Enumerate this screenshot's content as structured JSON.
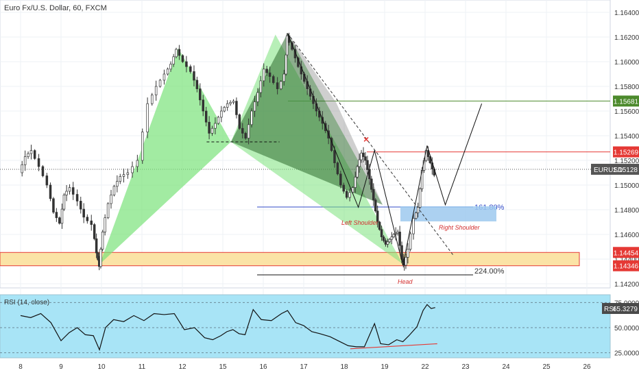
{
  "chart_title": "Euro Fx/U.S. Dollar, 60, FXCM",
  "rsi_title": "RSI (14, close)",
  "colors": {
    "candle": "#333333",
    "bullish_pattern": "#7be27b",
    "bearish_pattern": "#2f6b2f",
    "zone_fill": "#fbe3a6",
    "zone_border": "#e53935",
    "resistance": "#e53935",
    "target_line": "#4c8a2c",
    "fib_line": "#2f49c7",
    "shoulder_box": "#9ec9ef",
    "rsi_bg": "#a8e4f6",
    "rsi_line": "#111111",
    "rsi_trend": "#e53935",
    "label_red": "#d32f2f"
  },
  "chart_data": {
    "type": "candlestick",
    "symbol": "EURUSD",
    "timeframe": "60",
    "xlabels": [
      "8",
      "9",
      "10",
      "11",
      "12",
      "15",
      "16",
      "17",
      "18",
      "19",
      "22",
      "23",
      "24",
      "25",
      "26"
    ],
    "ylim": [
      1.1405,
      1.1655
    ],
    "ytick_labels": [
      "1.16400",
      "1.16200",
      "1.16000",
      "1.15800",
      "1.15600",
      "1.15400",
      "1.15200",
      "1.15000",
      "1.14800",
      "1.14600",
      "1.14400",
      "1.14200"
    ],
    "price_series": [
      [
        0,
        1.151
      ],
      [
        0.15,
        1.1523
      ],
      [
        0.3,
        1.1528
      ],
      [
        0.5,
        1.1515
      ],
      [
        0.7,
        1.15
      ],
      [
        0.85,
        1.1478
      ],
      [
        1.0,
        1.1469
      ],
      [
        1.1,
        1.1492
      ],
      [
        1.25,
        1.1498
      ],
      [
        1.45,
        1.1487
      ],
      [
        1.6,
        1.1474
      ],
      [
        1.8,
        1.1468
      ],
      [
        1.9,
        1.1445
      ],
      [
        1.96,
        1.1434
      ],
      [
        2.05,
        1.1462
      ],
      [
        2.2,
        1.1485
      ],
      [
        2.35,
        1.1499
      ],
      [
        2.5,
        1.1507
      ],
      [
        2.7,
        1.151
      ],
      [
        2.95,
        1.152
      ],
      [
        3.2,
        1.1566
      ],
      [
        3.4,
        1.158
      ],
      [
        3.6,
        1.159
      ],
      [
        3.75,
        1.1598
      ],
      [
        3.88,
        1.161
      ],
      [
        4.05,
        1.16
      ],
      [
        4.25,
        1.1592
      ],
      [
        4.4,
        1.1578
      ],
      [
        4.55,
        1.156
      ],
      [
        4.7,
        1.1542
      ],
      [
        4.85,
        1.155
      ],
      [
        5.0,
        1.156
      ],
      [
        5.15,
        1.1566
      ],
      [
        5.3,
        1.1568
      ],
      [
        5.45,
        1.1546
      ],
      [
        5.6,
        1.1538
      ],
      [
        5.75,
        1.156
      ],
      [
        5.9,
        1.1575
      ],
      [
        6.05,
        1.1594
      ],
      [
        6.2,
        1.1588
      ],
      [
        6.4,
        1.1578
      ],
      [
        6.55,
        1.159
      ],
      [
        6.6,
        1.1621
      ],
      [
        6.75,
        1.161
      ],
      [
        6.9,
        1.1596
      ],
      [
        7.05,
        1.1584
      ],
      [
        7.2,
        1.1572
      ],
      [
        7.35,
        1.156
      ],
      [
        7.5,
        1.155
      ],
      [
        7.65,
        1.1538
      ],
      [
        7.8,
        1.1518
      ],
      [
        7.95,
        1.15
      ],
      [
        8.1,
        1.149
      ],
      [
        8.25,
        1.1498
      ],
      [
        8.35,
        1.1515
      ],
      [
        8.45,
        1.1526
      ],
      [
        8.55,
        1.152
      ],
      [
        8.65,
        1.1505
      ],
      [
        8.75,
        1.1488
      ],
      [
        8.85,
        1.147
      ],
      [
        8.95,
        1.1458
      ],
      [
        9.05,
        1.1452
      ],
      [
        9.15,
        1.1456
      ],
      [
        9.25,
        1.146
      ],
      [
        9.35,
        1.1462
      ],
      [
        9.45,
        1.144
      ],
      [
        9.5,
        1.1435
      ],
      [
        9.6,
        1.1448
      ],
      [
        9.75,
        1.1473
      ],
      [
        9.85,
        1.1482
      ],
      [
        9.95,
        1.1512
      ],
      [
        10.05,
        1.1528
      ],
      [
        10.15,
        1.1518
      ],
      [
        10.25,
        1.1508
      ]
    ],
    "pattern_points": {
      "bullish_left": [
        [
          1.96,
          1.1436
        ],
        [
          3.9,
          1.1611
        ],
        [
          5.2,
          1.1535
        ]
      ],
      "bullish_right": [
        [
          5.2,
          1.1535
        ],
        [
          6.3,
          1.1622
        ],
        [
          9.45,
          1.1436
        ]
      ],
      "bearish": [
        [
          5.2,
          1.1535
        ],
        [
          6.6,
          1.1623
        ],
        [
          8.95,
          1.1484
        ]
      ],
      "harmonic_path": [
        [
          6.6,
          1.1623
        ],
        [
          8.35,
          1.1482
        ],
        [
          8.75,
          1.1528
        ],
        [
          9.45,
          1.1435
        ],
        [
          10.05,
          1.1532
        ],
        [
          10.5,
          1.1484
        ],
        [
          11.4,
          1.1566
        ]
      ]
    },
    "levels": [
      {
        "label": "1.15681",
        "price": 1.15681,
        "style": "green"
      },
      {
        "label": "1.15269",
        "price": 1.15269,
        "style": "red"
      },
      {
        "label": "1.15128",
        "price": 1.15128,
        "style": "current"
      },
      {
        "label": "1.14454",
        "price": 1.14454,
        "style": "red"
      },
      {
        "label": "1.14346",
        "price": 1.14346,
        "style": "red"
      }
    ],
    "current_symbol": "EURUSD",
    "fib_161_label": "161.80%",
    "fib_224_label": "224.00%",
    "annotations": {
      "left_shoulder": "Left Shoulder",
      "right_shoulder": "Right Shoulder",
      "head": "Head",
      "x_marker": "×"
    },
    "rsi": {
      "label": "RSI",
      "value": "65.3279",
      "ylim": [
        20,
        80
      ],
      "ytick_labels": [
        "75.0000",
        "50.0000",
        "25.0000"
      ],
      "series": [
        [
          0,
          62
        ],
        [
          0.25,
          60
        ],
        [
          0.5,
          64
        ],
        [
          0.75,
          55
        ],
        [
          1.0,
          37
        ],
        [
          1.2,
          45
        ],
        [
          1.4,
          50
        ],
        [
          1.6,
          43
        ],
        [
          1.8,
          42
        ],
        [
          1.95,
          28
        ],
        [
          2.1,
          50
        ],
        [
          2.3,
          58
        ],
        [
          2.55,
          56
        ],
        [
          2.8,
          62
        ],
        [
          3.05,
          57
        ],
        [
          3.3,
          64
        ],
        [
          3.55,
          63
        ],
        [
          3.8,
          64
        ],
        [
          4.05,
          48
        ],
        [
          4.3,
          50
        ],
        [
          4.55,
          40
        ],
        [
          4.75,
          38
        ],
        [
          4.95,
          42
        ],
        [
          5.1,
          46
        ],
        [
          5.25,
          48
        ],
        [
          5.4,
          44
        ],
        [
          5.55,
          43
        ],
        [
          5.75,
          68
        ],
        [
          5.95,
          58
        ],
        [
          6.2,
          57
        ],
        [
          6.45,
          64
        ],
        [
          6.6,
          67
        ],
        [
          6.8,
          55
        ],
        [
          7.0,
          52
        ],
        [
          7.2,
          46
        ],
        [
          7.4,
          44
        ],
        [
          7.65,
          41
        ],
        [
          7.9,
          36
        ],
        [
          8.1,
          32
        ],
        [
          8.3,
          31
        ],
        [
          8.5,
          31
        ],
        [
          8.75,
          54
        ],
        [
          8.9,
          34
        ],
        [
          9.1,
          33
        ],
        [
          9.3,
          38
        ],
        [
          9.45,
          36
        ],
        [
          9.6,
          42
        ],
        [
          9.8,
          51
        ],
        [
          9.95,
          67
        ],
        [
          10.05,
          73
        ],
        [
          10.15,
          69
        ],
        [
          10.25,
          70
        ]
      ],
      "trendline": [
        [
          8.15,
          29
        ],
        [
          10.3,
          34
        ]
      ]
    }
  }
}
